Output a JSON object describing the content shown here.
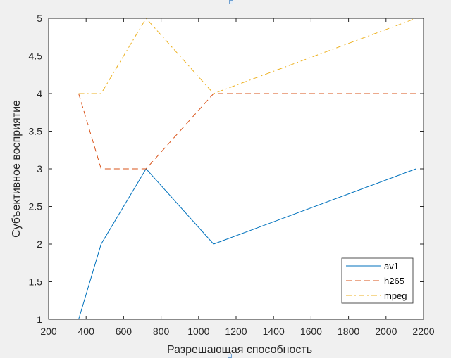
{
  "chart_data": {
    "type": "line",
    "xlabel": "Разрешающая способность",
    "ylabel": "Субъективное восприятие",
    "xlim": [
      200,
      2200
    ],
    "ylim": [
      1,
      5
    ],
    "xticks": [
      200,
      400,
      600,
      800,
      1000,
      1200,
      1400,
      1600,
      1800,
      2000,
      2200
    ],
    "yticks": [
      1,
      1.5,
      2,
      2.5,
      3,
      3.5,
      4,
      4.5,
      5
    ],
    "xtick_labels": [
      "200",
      "400",
      "600",
      "800",
      "1000",
      "1200",
      "1400",
      "1600",
      "1800",
      "2000",
      "2200"
    ],
    "ytick_labels": [
      "1",
      "1.5",
      "2",
      "2.5",
      "3",
      "3.5",
      "4",
      "4.5",
      "5"
    ],
    "grid": false,
    "legend_position": "bottom-right",
    "series": [
      {
        "name": "av1",
        "color": "#0072BD",
        "dash": "solid",
        "x": [
          360,
          480,
          720,
          1080,
          2160
        ],
        "y": [
          1,
          2,
          3,
          2,
          3
        ]
      },
      {
        "name": "h265",
        "color": "#D95319",
        "dash": "dashed",
        "x": [
          360,
          480,
          720,
          1080,
          2160
        ],
        "y": [
          4,
          3,
          3,
          4,
          4
        ]
      },
      {
        "name": "mpeg",
        "color": "#EDB120",
        "dash": "dashdot",
        "x": [
          360,
          480,
          720,
          1080,
          2160
        ],
        "y": [
          4,
          4,
          5,
          4,
          5
        ]
      }
    ]
  }
}
